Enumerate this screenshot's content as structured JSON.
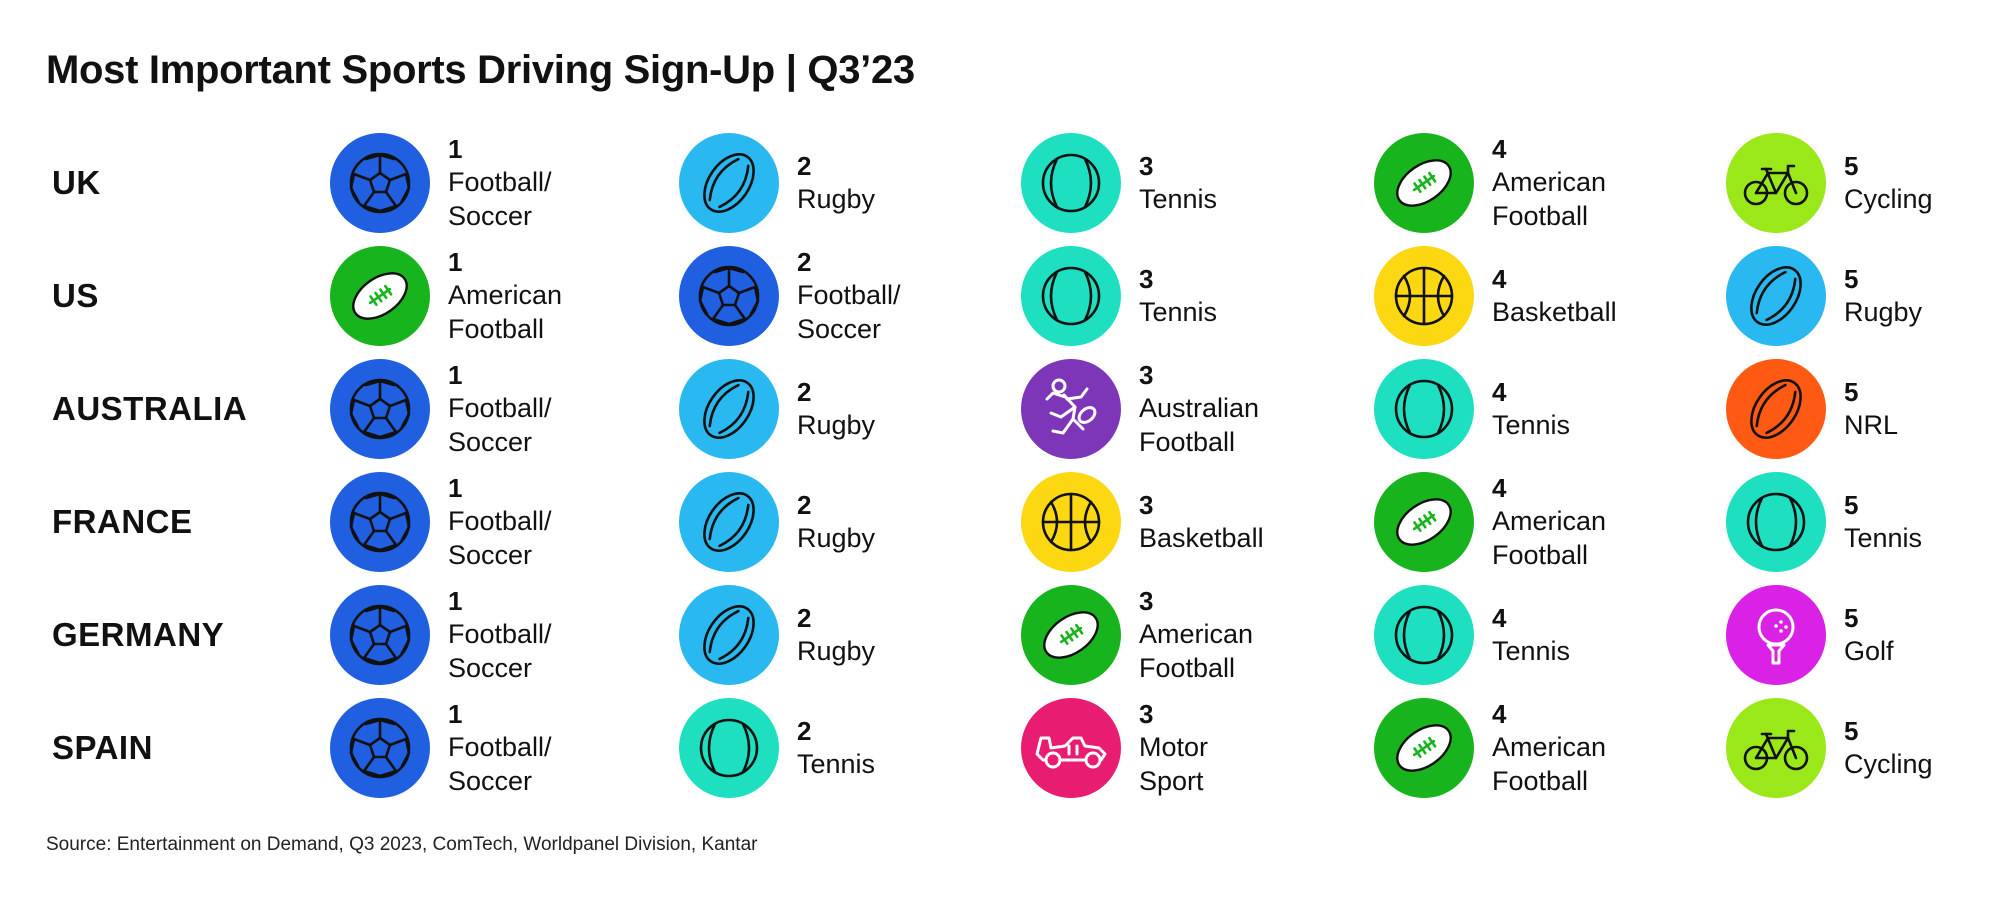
{
  "title": "Most Important Sports Driving Sign-Up | Q3’23",
  "source": "Source: Entertainment on Demand, Q3 2023, ComTech, Worldpanel Division, Kantar",
  "icons": {
    "football-soccer": {
      "color": "#1f5fe0",
      "icon": "soccer-ball-icon"
    },
    "rugby": {
      "color": "#29b9f0",
      "icon": "rugby-ball-icon"
    },
    "tennis": {
      "color": "#1ee0c0",
      "icon": "tennis-ball-icon"
    },
    "american-football": {
      "color": "#18b41e",
      "icon": "american-football-icon"
    },
    "cycling": {
      "color": "#9be81a",
      "icon": "bicycle-icon"
    },
    "basketball": {
      "color": "#fcd812",
      "icon": "basketball-icon"
    },
    "australian-football": {
      "color": "#7e36b8",
      "icon": "runner-icon"
    },
    "nrl": {
      "color": "#ff5a14",
      "icon": "rugby-ball-icon"
    },
    "golf": {
      "color": "#d922e6",
      "icon": "golf-ball-icon"
    },
    "motor-sport": {
      "color": "#e81c70",
      "icon": "race-car-icon"
    }
  },
  "rows": [
    {
      "country": "UK",
      "items": [
        {
          "rank": "1",
          "lines": [
            "Football/",
            "Soccer"
          ],
          "sport": "football-soccer"
        },
        {
          "rank": "2",
          "lines": [
            "Rugby"
          ],
          "sport": "rugby"
        },
        {
          "rank": "3",
          "lines": [
            "Tennis"
          ],
          "sport": "tennis"
        },
        {
          "rank": "4",
          "lines": [
            "American",
            "Football"
          ],
          "sport": "american-football"
        },
        {
          "rank": "5",
          "lines": [
            "Cycling"
          ],
          "sport": "cycling"
        }
      ]
    },
    {
      "country": "US",
      "items": [
        {
          "rank": "1",
          "lines": [
            "American",
            "Football"
          ],
          "sport": "american-football"
        },
        {
          "rank": "2",
          "lines": [
            "Football/",
            "Soccer"
          ],
          "sport": "football-soccer"
        },
        {
          "rank": "3",
          "lines": [
            "Tennis"
          ],
          "sport": "tennis"
        },
        {
          "rank": "4",
          "lines": [
            "Basketball"
          ],
          "sport": "basketball"
        },
        {
          "rank": "5",
          "lines": [
            "Rugby"
          ],
          "sport": "rugby"
        }
      ]
    },
    {
      "country": "AUSTRALIA",
      "items": [
        {
          "rank": "1",
          "lines": [
            "Football/",
            "Soccer"
          ],
          "sport": "football-soccer"
        },
        {
          "rank": "2",
          "lines": [
            "Rugby"
          ],
          "sport": "rugby"
        },
        {
          "rank": "3",
          "lines": [
            "Australian",
            "Football"
          ],
          "sport": "australian-football"
        },
        {
          "rank": "4",
          "lines": [
            "Tennis"
          ],
          "sport": "tennis"
        },
        {
          "rank": "5",
          "lines": [
            "NRL"
          ],
          "sport": "nrl"
        }
      ]
    },
    {
      "country": "FRANCE",
      "items": [
        {
          "rank": "1",
          "lines": [
            "Football/",
            "Soccer"
          ],
          "sport": "football-soccer"
        },
        {
          "rank": "2",
          "lines": [
            "Rugby"
          ],
          "sport": "rugby"
        },
        {
          "rank": "3",
          "lines": [
            "Basketball"
          ],
          "sport": "basketball"
        },
        {
          "rank": "4",
          "lines": [
            "American",
            "Football"
          ],
          "sport": "american-football"
        },
        {
          "rank": "5",
          "lines": [
            "Tennis"
          ],
          "sport": "tennis"
        }
      ]
    },
    {
      "country": "GERMANY",
      "items": [
        {
          "rank": "1",
          "lines": [
            "Football/",
            "Soccer"
          ],
          "sport": "football-soccer"
        },
        {
          "rank": "2",
          "lines": [
            "Rugby"
          ],
          "sport": "rugby"
        },
        {
          "rank": "3",
          "lines": [
            "American",
            "Football"
          ],
          "sport": "american-football"
        },
        {
          "rank": "4",
          "lines": [
            "Tennis"
          ],
          "sport": "tennis"
        },
        {
          "rank": "5",
          "lines": [
            "Golf"
          ],
          "sport": "golf"
        }
      ]
    },
    {
      "country": "SPAIN",
      "items": [
        {
          "rank": "1",
          "lines": [
            "Football/",
            "Soccer"
          ],
          "sport": "football-soccer"
        },
        {
          "rank": "2",
          "lines": [
            "Tennis"
          ],
          "sport": "tennis"
        },
        {
          "rank": "3",
          "lines": [
            "Motor",
            "Sport"
          ],
          "sport": "motor-sport"
        },
        {
          "rank": "4",
          "lines": [
            "American",
            "Football"
          ],
          "sport": "american-football"
        },
        {
          "rank": "5",
          "lines": [
            "Cycling"
          ],
          "sport": "cycling"
        }
      ]
    }
  ]
}
